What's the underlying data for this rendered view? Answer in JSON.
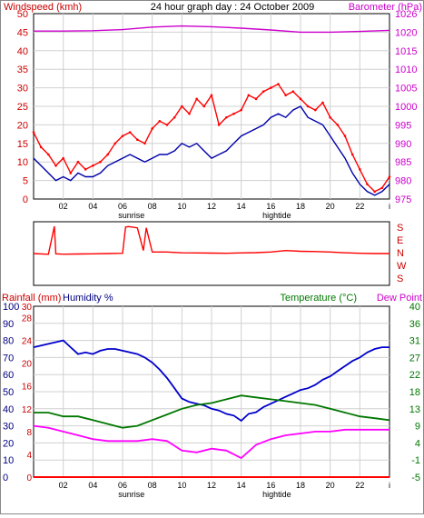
{
  "chart_data": [
    {
      "type": "line",
      "title": "24 hour graph day : 24 October 2009",
      "ylabel_left": "Windspeed (kmh)",
      "ylabel_right": "Barometer (hPa)",
      "x_ticks": [
        "02",
        "04",
        "06",
        "08",
        "10",
        "12",
        "14",
        "16",
        "18",
        "20",
        "22",
        "i"
      ],
      "x_annotations": [
        "sunrise",
        "hightide"
      ],
      "y_left_ticks": [
        "0",
        "5",
        "10",
        "15",
        "20",
        "25",
        "30",
        "35",
        "40",
        "45",
        "50"
      ],
      "y_left_range": [
        0,
        50
      ],
      "y_right_ticks": [
        "975",
        "980",
        "985",
        "990",
        "995",
        "1000",
        "1005",
        "1010",
        "1015",
        "1020",
        "1026"
      ],
      "y_right_range": [
        975,
        1026
      ],
      "grid": true,
      "colors": {
        "wind_gust": "#ff0000",
        "wind_avg": "#0000aa",
        "barometer": "#cc00cc"
      },
      "series": [
        {
          "key": "barometer",
          "axis": "right",
          "x": [
            0,
            2,
            4,
            6,
            8,
            10,
            12,
            14,
            16,
            18,
            20,
            22,
            24
          ],
          "values": [
            1021.2,
            1021.2,
            1021.3,
            1021.6,
            1022.3,
            1022.6,
            1022.4,
            1022.0,
            1021.5,
            1020.9,
            1020.9,
            1021.1,
            1021.4
          ]
        },
        {
          "key": "wind_gust",
          "axis": "left",
          "x": [
            0,
            0.5,
            1,
            1.5,
            2,
            2.5,
            3,
            3.5,
            4,
            4.5,
            5,
            5.5,
            6,
            6.5,
            7,
            7.5,
            8,
            8.5,
            9,
            9.5,
            10,
            10.5,
            11,
            11.5,
            12,
            12.5,
            13,
            13.5,
            14,
            14.5,
            15,
            15.5,
            16,
            16.5,
            17,
            17.5,
            18,
            18.5,
            19,
            19.5,
            20,
            20.5,
            21,
            21.5,
            22,
            22.5,
            23,
            23.5,
            24
          ],
          "values": [
            18,
            14,
            12,
            9,
            11,
            7,
            10,
            8,
            9,
            10,
            12,
            15,
            17,
            18,
            16,
            15,
            19,
            21,
            20,
            22,
            25,
            23,
            27,
            25,
            28,
            20,
            22,
            23,
            24,
            28,
            27,
            29,
            30,
            31,
            28,
            29,
            27,
            25,
            24,
            26,
            22,
            20,
            17,
            12,
            8,
            4,
            2,
            3,
            6
          ]
        },
        {
          "key": "wind_avg",
          "axis": "left",
          "x": [
            0,
            0.5,
            1,
            1.5,
            2,
            2.5,
            3,
            3.5,
            4,
            4.5,
            5,
            5.5,
            6,
            6.5,
            7,
            7.5,
            8,
            8.5,
            9,
            9.5,
            10,
            10.5,
            11,
            11.5,
            12,
            12.5,
            13,
            13.5,
            14,
            14.5,
            15,
            15.5,
            16,
            16.5,
            17,
            17.5,
            18,
            18.5,
            19,
            19.5,
            20,
            20.5,
            21,
            21.5,
            22,
            22.5,
            23,
            23.5,
            24
          ],
          "values": [
            11,
            9,
            7,
            5,
            6,
            5,
            7,
            6,
            6,
            7,
            9,
            10,
            11,
            12,
            11,
            10,
            11,
            12,
            12,
            13,
            15,
            14,
            15,
            13,
            11,
            12,
            13,
            15,
            17,
            18,
            19,
            20,
            22,
            23,
            22,
            24,
            25,
            22,
            21,
            20,
            17,
            14,
            11,
            7,
            4,
            2,
            1,
            2,
            4
          ]
        }
      ]
    },
    {
      "type": "line",
      "ylabel_right_ticks": [
        "S",
        "E",
        "N",
        "W",
        "S"
      ],
      "x_ticks": [
        "02",
        "04",
        "06",
        "08",
        "10",
        "12",
        "14",
        "16",
        "18",
        "20",
        "22",
        "i"
      ],
      "colors": {
        "direction": "#ff0000"
      },
      "series": [
        {
          "key": "wind_direction",
          "x": [
            0,
            1,
            1.4,
            1.5,
            2,
            3,
            4,
            5,
            6,
            6.2,
            6.4,
            7,
            7.4,
            7.6,
            8,
            9,
            10,
            11,
            12,
            13,
            14,
            15,
            16,
            17,
            18,
            19,
            20,
            21,
            22,
            23,
            24
          ],
          "values": [
            180,
            175,
            360,
            178,
            176,
            177,
            178,
            180,
            182,
            355,
            358,
            350,
            200,
            350,
            190,
            190,
            185,
            184,
            183,
            182,
            184,
            186,
            190,
            200,
            195,
            193,
            190,
            185,
            182,
            180,
            180
          ]
        }
      ]
    },
    {
      "type": "line",
      "ylabel_left": "Rainfall (mm)",
      "ylabel_left2": "Humidity %",
      "ylabel_right": "Temperature (°C)",
      "ylabel_right2": "Dew Point",
      "x_ticks": [
        "02",
        "04",
        "06",
        "08",
        "10",
        "12",
        "14",
        "16",
        "18",
        "20",
        "22",
        "i"
      ],
      "x_annotations": [
        "sunrise",
        "hightide"
      ],
      "rain_ticks": [
        "0",
        "2",
        "4",
        "6",
        "8",
        "10",
        "12",
        "14",
        "16",
        "18",
        "20",
        "22",
        "24",
        "26",
        "28",
        "30"
      ],
      "rain_ticks_shown": [
        "0",
        "4",
        "8",
        "12",
        "16",
        "20",
        "24",
        "28",
        "30"
      ],
      "humidity_ticks": [
        "0",
        "10",
        "20",
        "30",
        "40",
        "50",
        "60",
        "70",
        "80",
        "90",
        "100"
      ],
      "temp_ticks": [
        "-5",
        "-1",
        "4",
        "9",
        "13",
        "18",
        "22",
        "27",
        "31",
        "36",
        "40"
      ],
      "temp_range": [
        -5,
        40
      ],
      "grid": true,
      "colors": {
        "humidity": "#0000cc",
        "temperature": "#007700",
        "dewpoint": "#ff00ff",
        "rainfall": "#ff0000"
      },
      "series": [
        {
          "key": "humidity",
          "axis": "humidity",
          "x": [
            0,
            0.5,
            1,
            1.5,
            2,
            2.5,
            3,
            3.5,
            4,
            4.5,
            5,
            5.5,
            6,
            6.5,
            7,
            7.5,
            8,
            8.5,
            9,
            9.5,
            10,
            10.5,
            11,
            11.5,
            12,
            12.5,
            13,
            13.5,
            14,
            14.5,
            15,
            15.5,
            16,
            16.5,
            17,
            17.5,
            18,
            18.5,
            19,
            19.5,
            20,
            20.5,
            21,
            21.5,
            22,
            22.5,
            23,
            23.5,
            24
          ],
          "values": [
            76,
            77,
            78,
            79,
            80,
            76,
            72,
            73,
            72,
            74,
            75,
            75,
            74,
            73,
            72,
            70,
            67,
            63,
            58,
            52,
            46,
            44,
            43,
            42,
            40,
            39,
            37,
            36,
            33,
            37,
            38,
            41,
            43,
            45,
            47,
            49,
            51,
            52,
            54,
            57,
            59,
            62,
            65,
            68,
            70,
            73,
            75,
            76,
            76
          ]
        },
        {
          "key": "temperature",
          "axis": "temp",
          "x": [
            0,
            1,
            2,
            3,
            4,
            5,
            6,
            7,
            8,
            9,
            10,
            11,
            12,
            13,
            14,
            15,
            16,
            17,
            18,
            19,
            20,
            21,
            22,
            23,
            24
          ],
          "values": [
            12,
            12,
            11,
            11,
            10,
            9,
            8,
            8.5,
            10,
            11.5,
            13,
            14,
            14.5,
            15.5,
            16.5,
            16,
            15.5,
            15,
            14.5,
            14,
            13,
            12,
            11,
            10.5,
            10
          ]
        },
        {
          "key": "dewpoint",
          "axis": "temp",
          "x": [
            0,
            1,
            2,
            3,
            4,
            5,
            6,
            7,
            8,
            9,
            10,
            11,
            12,
            13,
            14,
            15,
            16,
            17,
            18,
            19,
            20,
            21,
            22,
            23,
            24
          ],
          "values": [
            8.5,
            8,
            7,
            6,
            5,
            4.5,
            4.5,
            4.5,
            5,
            4.5,
            2,
            1.5,
            2.5,
            2,
            0,
            3.5,
            5,
            6,
            6.5,
            7,
            7,
            7.5,
            7.5,
            7.5,
            7.5
          ]
        },
        {
          "key": "rainfall",
          "axis": "rain",
          "x": [
            0,
            24
          ],
          "values": [
            0,
            0
          ]
        }
      ]
    }
  ]
}
